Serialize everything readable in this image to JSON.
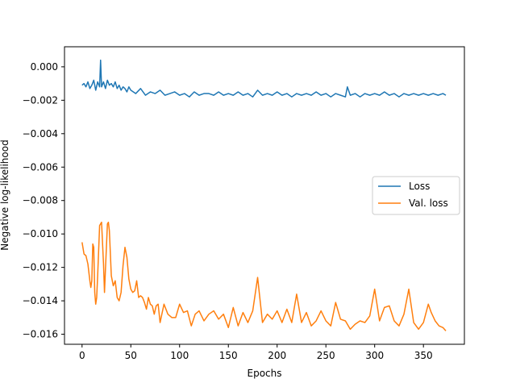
{
  "chart_data": {
    "type": "line",
    "title": "",
    "xlabel": "Epochs",
    "ylabel": "Negative log-likelihood",
    "xlim": [
      -18,
      392
    ],
    "ylim": [
      -0.0166,
      0.0012
    ],
    "xticks": [
      0,
      50,
      100,
      150,
      200,
      250,
      300,
      350
    ],
    "xtick_labels": [
      "0",
      "50",
      "100",
      "150",
      "200",
      "250",
      "300",
      "350"
    ],
    "yticks": [
      0.0,
      -0.002,
      -0.004,
      -0.006,
      -0.008,
      -0.01,
      -0.012,
      -0.014,
      -0.016
    ],
    "ytick_labels": [
      "0.000",
      "−0.002",
      "−0.004",
      "−0.006",
      "−0.008",
      "−0.010",
      "−0.012",
      "−0.014",
      "−0.016"
    ],
    "grid": false,
    "legend_position": "center-right",
    "series": [
      {
        "name": "Loss",
        "color": "#1f77b4",
        "x": [
          0,
          2,
          4,
          6,
          8,
          10,
          12,
          14,
          16,
          18,
          19,
          20,
          22,
          24,
          26,
          28,
          30,
          32,
          34,
          36,
          38,
          40,
          42,
          44,
          46,
          48,
          50,
          55,
          60,
          65,
          70,
          75,
          80,
          85,
          90,
          95,
          100,
          105,
          110,
          115,
          120,
          125,
          130,
          135,
          140,
          145,
          150,
          155,
          160,
          165,
          170,
          175,
          180,
          185,
          190,
          195,
          200,
          205,
          210,
          215,
          220,
          225,
          230,
          235,
          240,
          245,
          250,
          255,
          260,
          265,
          270,
          272,
          275,
          280,
          285,
          290,
          295,
          300,
          305,
          310,
          315,
          320,
          325,
          330,
          335,
          340,
          345,
          350,
          355,
          360,
          365,
          370,
          373
        ],
        "y": [
          -0.0011,
          -0.001,
          -0.0012,
          -0.0009,
          -0.0013,
          -0.0011,
          -0.0008,
          -0.0014,
          -0.0009,
          -0.0012,
          0.0004,
          -0.0012,
          -0.0009,
          -0.0013,
          -0.0008,
          -0.0011,
          -0.001,
          -0.0012,
          -0.0009,
          -0.0013,
          -0.0011,
          -0.0014,
          -0.0012,
          -0.0013,
          -0.0015,
          -0.0012,
          -0.0014,
          -0.0016,
          -0.0013,
          -0.0017,
          -0.0015,
          -0.0016,
          -0.0014,
          -0.0017,
          -0.0016,
          -0.0015,
          -0.0017,
          -0.0016,
          -0.0018,
          -0.0015,
          -0.0017,
          -0.0016,
          -0.0016,
          -0.0017,
          -0.0015,
          -0.0017,
          -0.0016,
          -0.0017,
          -0.0015,
          -0.0017,
          -0.0016,
          -0.0018,
          -0.0014,
          -0.0017,
          -0.0016,
          -0.0017,
          -0.0015,
          -0.0017,
          -0.0016,
          -0.0018,
          -0.0016,
          -0.0017,
          -0.0016,
          -0.0017,
          -0.0015,
          -0.0017,
          -0.0016,
          -0.0018,
          -0.0016,
          -0.0017,
          -0.0018,
          -0.0012,
          -0.0017,
          -0.0016,
          -0.0018,
          -0.0016,
          -0.0017,
          -0.0016,
          -0.0017,
          -0.0015,
          -0.0017,
          -0.0016,
          -0.0018,
          -0.0016,
          -0.0017,
          -0.0016,
          -0.0017,
          -0.0016,
          -0.0017,
          -0.0016,
          -0.0017,
          -0.0016,
          -0.0017
        ]
      },
      {
        "name": "Val. loss",
        "color": "#ff7f0e",
        "x": [
          0,
          2,
          4,
          6,
          8,
          9,
          10,
          11,
          12,
          13,
          14,
          15,
          16,
          18,
          20,
          22,
          23,
          24,
          26,
          27,
          28,
          30,
          32,
          34,
          36,
          38,
          40,
          42,
          44,
          46,
          48,
          50,
          52,
          54,
          56,
          58,
          60,
          62,
          64,
          66,
          68,
          70,
          72,
          74,
          76,
          78,
          80,
          84,
          88,
          92,
          96,
          100,
          104,
          108,
          112,
          116,
          120,
          125,
          130,
          135,
          140,
          145,
          150,
          155,
          160,
          165,
          170,
          175,
          180,
          185,
          190,
          195,
          200,
          205,
          210,
          215,
          220,
          225,
          230,
          235,
          240,
          245,
          250,
          255,
          260,
          265,
          270,
          275,
          280,
          285,
          290,
          295,
          300,
          305,
          310,
          315,
          320,
          325,
          330,
          335,
          340,
          345,
          350,
          355,
          358,
          362,
          366,
          370,
          373
        ],
        "y": [
          -0.0105,
          -0.0112,
          -0.0113,
          -0.0118,
          -0.0128,
          -0.0132,
          -0.0128,
          -0.0106,
          -0.0108,
          -0.0135,
          -0.0142,
          -0.0138,
          -0.0125,
          -0.0095,
          -0.0093,
          -0.0118,
          -0.0135,
          -0.0121,
          -0.0094,
          -0.0093,
          -0.0098,
          -0.0125,
          -0.0131,
          -0.0128,
          -0.0138,
          -0.014,
          -0.0135,
          -0.0119,
          -0.0108,
          -0.0114,
          -0.0127,
          -0.0133,
          -0.0135,
          -0.0134,
          -0.0128,
          -0.0138,
          -0.0137,
          -0.0138,
          -0.0141,
          -0.0145,
          -0.0138,
          -0.0142,
          -0.0143,
          -0.0148,
          -0.0143,
          -0.0142,
          -0.0153,
          -0.0142,
          -0.0148,
          -0.015,
          -0.015,
          -0.0142,
          -0.0147,
          -0.0146,
          -0.0155,
          -0.0148,
          -0.0146,
          -0.0152,
          -0.0148,
          -0.0146,
          -0.0151,
          -0.0148,
          -0.0156,
          -0.0144,
          -0.0155,
          -0.0147,
          -0.0153,
          -0.0146,
          -0.0126,
          -0.0153,
          -0.0148,
          -0.0151,
          -0.0146,
          -0.0153,
          -0.0145,
          -0.0153,
          -0.0136,
          -0.0153,
          -0.0147,
          -0.0155,
          -0.0152,
          -0.0146,
          -0.0152,
          -0.0155,
          -0.0141,
          -0.0151,
          -0.0152,
          -0.0157,
          -0.0154,
          -0.0152,
          -0.0153,
          -0.0149,
          -0.0133,
          -0.0152,
          -0.0144,
          -0.0143,
          -0.0152,
          -0.0155,
          -0.0148,
          -0.0133,
          -0.0153,
          -0.0157,
          -0.0153,
          -0.0142,
          -0.0147,
          -0.0152,
          -0.0155,
          -0.0156,
          -0.0158
        ]
      }
    ]
  }
}
